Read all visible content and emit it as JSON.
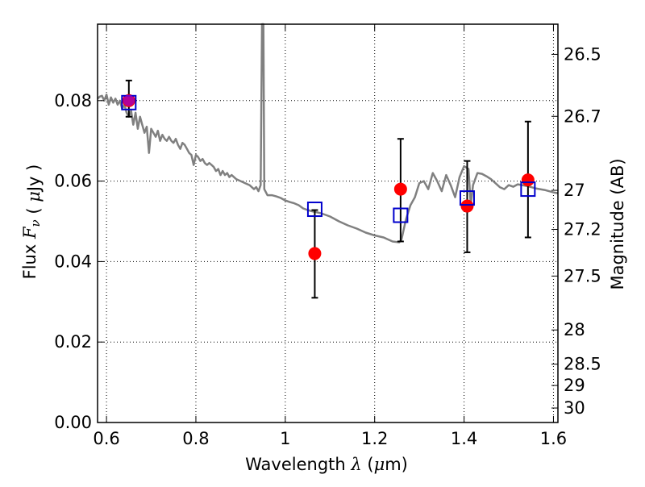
{
  "chart_data": {
    "type": "scatter",
    "title": "",
    "xlabel": "Wavelength  λ (μm)",
    "ylabel": "Flux  F_ν  ( μJy )",
    "ylabel_right": "Magnitude (AB)",
    "xlim": [
      0.58,
      1.61
    ],
    "ylim": [
      0.0,
      0.099
    ],
    "grid": true,
    "x_ticks": [
      0.6,
      0.8,
      1.0,
      1.2,
      1.4,
      1.6
    ],
    "x_tick_labels": [
      "0.6",
      "0.8",
      "1",
      "1.2",
      "1.4",
      "1.6"
    ],
    "y_ticks": [
      0.0,
      0.02,
      0.04,
      0.06,
      0.08
    ],
    "y_tick_labels": [
      "0.00",
      "0.02",
      "0.04",
      "0.06",
      "0.08"
    ],
    "right_ticks": [
      {
        "label": "26.5",
        "flux": 0.0915
      },
      {
        "label": "26.7",
        "flux": 0.0761
      },
      {
        "label": "27",
        "flux": 0.0577
      },
      {
        "label": "27.2",
        "flux": 0.048
      },
      {
        "label": "27.5",
        "flux": 0.0364
      },
      {
        "label": "28",
        "flux": 0.023
      },
      {
        "label": "28.5",
        "flux": 0.0145
      },
      {
        "label": "29",
        "flux": 0.0092
      },
      {
        "label": "30",
        "flux": 0.0036
      }
    ],
    "series": [
      {
        "kind": "line",
        "color": "#808080",
        "points": [
          [
            0.58,
            0.0805
          ],
          [
            0.585,
            0.081
          ],
          [
            0.59,
            0.0812
          ],
          [
            0.595,
            0.08
          ],
          [
            0.6,
            0.0815
          ],
          [
            0.605,
            0.079
          ],
          [
            0.61,
            0.0808
          ],
          [
            0.615,
            0.0795
          ],
          [
            0.62,
            0.0805
          ],
          [
            0.625,
            0.079
          ],
          [
            0.63,
            0.08
          ],
          [
            0.635,
            0.078
          ],
          [
            0.64,
            0.079
          ],
          [
            0.645,
            0.077
          ],
          [
            0.65,
            0.076
          ],
          [
            0.655,
            0.0775
          ],
          [
            0.66,
            0.074
          ],
          [
            0.665,
            0.077
          ],
          [
            0.67,
            0.073
          ],
          [
            0.675,
            0.076
          ],
          [
            0.68,
            0.074
          ],
          [
            0.685,
            0.072
          ],
          [
            0.69,
            0.0735
          ],
          [
            0.695,
            0.067
          ],
          [
            0.7,
            0.073
          ],
          [
            0.705,
            0.072
          ],
          [
            0.71,
            0.071
          ],
          [
            0.715,
            0.0725
          ],
          [
            0.72,
            0.07
          ],
          [
            0.725,
            0.0715
          ],
          [
            0.73,
            0.0705
          ],
          [
            0.735,
            0.07
          ],
          [
            0.74,
            0.071
          ],
          [
            0.745,
            0.07
          ],
          [
            0.75,
            0.0695
          ],
          [
            0.755,
            0.0705
          ],
          [
            0.76,
            0.069
          ],
          [
            0.765,
            0.068
          ],
          [
            0.77,
            0.0695
          ],
          [
            0.775,
            0.069
          ],
          [
            0.78,
            0.068
          ],
          [
            0.785,
            0.067
          ],
          [
            0.79,
            0.0665
          ],
          [
            0.795,
            0.064
          ],
          [
            0.8,
            0.0665
          ],
          [
            0.805,
            0.066
          ],
          [
            0.81,
            0.065
          ],
          [
            0.815,
            0.0655
          ],
          [
            0.82,
            0.0645
          ],
          [
            0.825,
            0.064
          ],
          [
            0.83,
            0.0645
          ],
          [
            0.835,
            0.064
          ],
          [
            0.84,
            0.0635
          ],
          [
            0.845,
            0.0625
          ],
          [
            0.85,
            0.063
          ],
          [
            0.855,
            0.0615
          ],
          [
            0.86,
            0.0625
          ],
          [
            0.865,
            0.0615
          ],
          [
            0.87,
            0.062
          ],
          [
            0.875,
            0.061
          ],
          [
            0.88,
            0.0615
          ],
          [
            0.89,
            0.0605
          ],
          [
            0.9,
            0.06
          ],
          [
            0.91,
            0.0595
          ],
          [
            0.92,
            0.059
          ],
          [
            0.93,
            0.058
          ],
          [
            0.935,
            0.0585
          ],
          [
            0.94,
            0.0575
          ],
          [
            0.945,
            0.059
          ],
          [
            0.948,
            0.099
          ],
          [
            0.951,
            0.099
          ],
          [
            0.953,
            0.058
          ],
          [
            0.96,
            0.0565
          ],
          [
            0.97,
            0.0565
          ],
          [
            0.98,
            0.0562
          ],
          [
            0.99,
            0.0558
          ],
          [
            1.0,
            0.0552
          ],
          [
            1.01,
            0.0548
          ],
          [
            1.02,
            0.0545
          ],
          [
            1.03,
            0.054
          ],
          [
            1.04,
            0.0532
          ],
          [
            1.05,
            0.0528
          ],
          [
            1.06,
            0.0525
          ],
          [
            1.08,
            0.052
          ],
          [
            1.1,
            0.0512
          ],
          [
            1.12,
            0.05
          ],
          [
            1.14,
            0.049
          ],
          [
            1.16,
            0.0482
          ],
          [
            1.18,
            0.0472
          ],
          [
            1.2,
            0.0465
          ],
          [
            1.22,
            0.046
          ],
          [
            1.24,
            0.045
          ],
          [
            1.255,
            0.0448
          ],
          [
            1.26,
            0.0455
          ],
          [
            1.27,
            0.0505
          ],
          [
            1.28,
            0.054
          ],
          [
            1.29,
            0.056
          ],
          [
            1.3,
            0.0595
          ],
          [
            1.31,
            0.06
          ],
          [
            1.32,
            0.058
          ],
          [
            1.33,
            0.062
          ],
          [
            1.34,
            0.06
          ],
          [
            1.35,
            0.0575
          ],
          [
            1.36,
            0.0615
          ],
          [
            1.37,
            0.059
          ],
          [
            1.38,
            0.056
          ],
          [
            1.39,
            0.061
          ],
          [
            1.4,
            0.0637
          ],
          [
            1.41,
            0.063
          ],
          [
            1.415,
            0.054
          ],
          [
            1.42,
            0.059
          ],
          [
            1.43,
            0.062
          ],
          [
            1.44,
            0.0618
          ],
          [
            1.45,
            0.0612
          ],
          [
            1.46,
            0.0605
          ],
          [
            1.47,
            0.0595
          ],
          [
            1.48,
            0.0585
          ],
          [
            1.49,
            0.058
          ],
          [
            1.5,
            0.059
          ],
          [
            1.51,
            0.0586
          ],
          [
            1.52,
            0.0592
          ],
          [
            1.53,
            0.059
          ],
          [
            1.54,
            0.0588
          ],
          [
            1.55,
            0.0585
          ],
          [
            1.56,
            0.0582
          ],
          [
            1.57,
            0.058
          ],
          [
            1.58,
            0.0578
          ],
          [
            1.59,
            0.0575
          ],
          [
            1.6,
            0.0572
          ],
          [
            1.61,
            0.057
          ]
        ]
      },
      {
        "kind": "points",
        "marker": "circle",
        "color": "#ff0000",
        "points": [
          {
            "x": 0.65,
            "y": 0.08,
            "yerr_low": 0.076,
            "yerr_high": 0.085
          },
          {
            "x": 1.066,
            "y": 0.042,
            "yerr_low": 0.031,
            "yerr_high": 0.0528
          },
          {
            "x": 1.258,
            "y": 0.058,
            "yerr_low": 0.045,
            "yerr_high": 0.0705
          },
          {
            "x": 1.407,
            "y": 0.0538,
            "yerr_low": 0.0423,
            "yerr_high": 0.065
          },
          {
            "x": 1.543,
            "y": 0.0603,
            "yerr_low": 0.046,
            "yerr_high": 0.0748
          }
        ]
      },
      {
        "kind": "points",
        "marker": "square-open",
        "color": "#0000cc",
        "points": [
          {
            "x": 0.65,
            "y": 0.0795
          },
          {
            "x": 1.066,
            "y": 0.053
          },
          {
            "x": 1.258,
            "y": 0.0515
          },
          {
            "x": 1.407,
            "y": 0.0558
          },
          {
            "x": 1.543,
            "y": 0.058
          }
        ]
      }
    ]
  }
}
